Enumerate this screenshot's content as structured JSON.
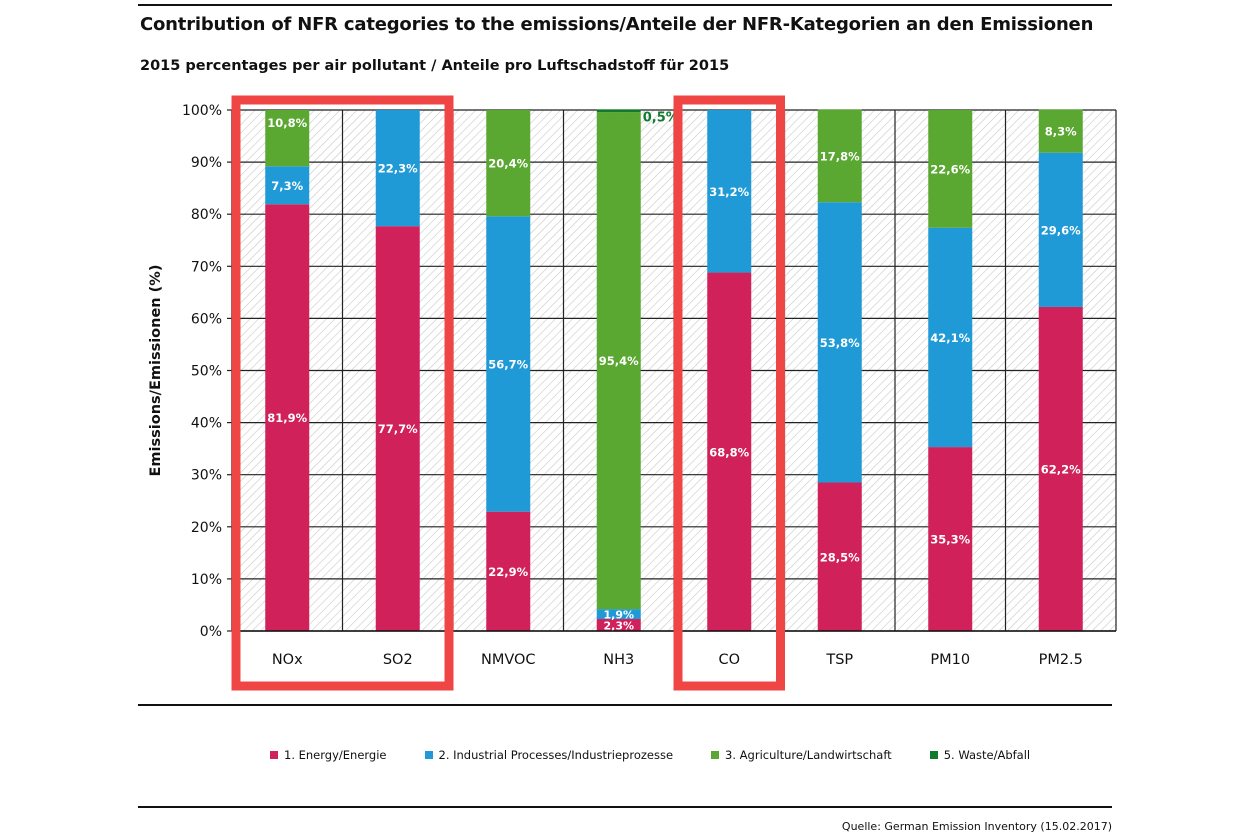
{
  "header": {
    "title": "Contribution of NFR categories to the emissions/Anteile der NFR-Kategorien an den Emissionen",
    "subtitle": "2015 percentages per air pollutant / Anteile pro Luftschadstoff für 2015"
  },
  "footer": {
    "source": "Quelle: German Emission Inventory (15.02.2017)"
  },
  "chart_data": {
    "type": "bar",
    "stacked": true,
    "title": "Contribution of NFR categories to the emissions/Anteile der NFR-Kategorien an den Emissionen",
    "subtitle": "2015 percentages per air pollutant / Anteile pro Luftschadstoff für 2015",
    "xlabel": "",
    "ylabel": "Emissions/Emissionen (%)",
    "ylim": [
      0,
      100
    ],
    "yticks": [
      0,
      10,
      20,
      30,
      40,
      50,
      60,
      70,
      80,
      90,
      100
    ],
    "ytick_labels": [
      "0%",
      "10%",
      "20%",
      "30%",
      "40%",
      "50%",
      "60%",
      "70%",
      "80%",
      "90%",
      "100%"
    ],
    "grid": true,
    "legend_position": "bottom",
    "categories": [
      "NOx",
      "SO2",
      "NMVOC",
      "NH3",
      "CO",
      "TSP",
      "PM10",
      "PM2.5"
    ],
    "series": [
      {
        "name": "1. Energy/Energie",
        "color": "#d0215b",
        "values": [
          81.9,
          77.7,
          22.9,
          2.3,
          68.8,
          28.5,
          35.3,
          62.2
        ],
        "labels": [
          "81,9%",
          "77,7%",
          "22,9%",
          "2,3%",
          "68,8%",
          "28,5%",
          "35,3%",
          "62,2%"
        ]
      },
      {
        "name": "2. Industrial Processes/Industrieprozesse",
        "color": "#1f9ad6",
        "values": [
          7.3,
          22.3,
          56.7,
          1.9,
          31.2,
          53.8,
          42.1,
          29.6
        ],
        "labels": [
          "7,3%",
          "22,3%",
          "56,7%",
          "1,9%",
          "31,2%",
          "53,8%",
          "42,1%",
          "29,6%"
        ]
      },
      {
        "name": "3. Agriculture/Landwirtschaft",
        "color": "#5aa832",
        "values": [
          10.8,
          0,
          20.4,
          95.4,
          0,
          17.8,
          22.6,
          8.3
        ],
        "labels": [
          "10,8%",
          "",
          "20,4%",
          "95,4%",
          "",
          "17,8%",
          "22,6%",
          "8,3%"
        ]
      },
      {
        "name": "5. Waste/Abfall",
        "color": "#107a2e",
        "values": [
          0,
          0,
          0,
          0.5,
          0,
          0,
          0,
          0
        ],
        "labels": [
          "",
          "",
          "",
          "0,5%",
          "",
          "",
          "",
          ""
        ]
      }
    ],
    "highlighted_categories": [
      [
        "NOx",
        "SO2"
      ],
      [
        "CO"
      ]
    ],
    "highlight_color": "#f04545"
  }
}
